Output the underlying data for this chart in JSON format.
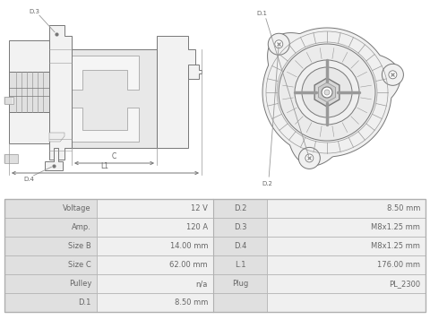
{
  "bg_color": "#ffffff",
  "table_row_bg1": "#e0e0e0",
  "table_row_bg2": "#f0f0f0",
  "table_col2_bg": "#d8d8d8",
  "table_border": "#b0b0b0",
  "table_data": [
    [
      "Voltage",
      "12 V",
      "D.2",
      "8.50 mm"
    ],
    [
      "Amp.",
      "120 A",
      "D.3",
      "M8x1.25 mm"
    ],
    [
      "Size B",
      "14.00 mm",
      "D.4",
      "M8x1.25 mm"
    ],
    [
      "Size C",
      "62.00 mm",
      "L.1",
      "176.00 mm"
    ],
    [
      "Pulley",
      "n/a",
      "Plug",
      "PL_2300"
    ],
    [
      "D.1",
      "8.50 mm",
      "",
      ""
    ]
  ],
  "text_color": "#666666",
  "lc": "#999999",
  "lc_dark": "#777777",
  "lc_light": "#bbbbbb"
}
